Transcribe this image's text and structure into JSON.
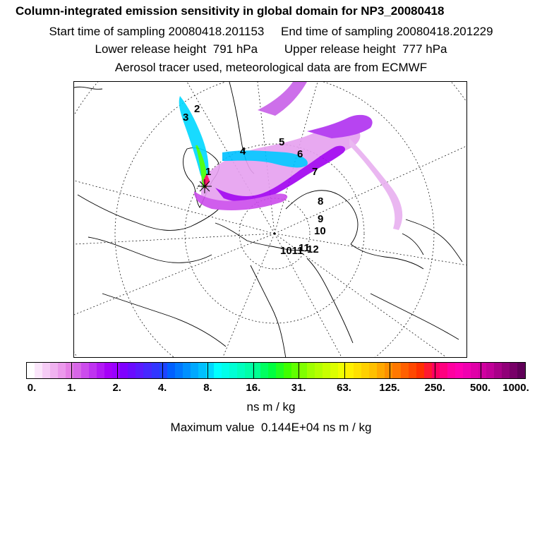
{
  "header": {
    "title": "Column-integrated emission sensitivity in global domain for NP3_20080418",
    "sampling_line": "Start time of sampling 20080418.201153     End time of sampling 20080418.201229",
    "release_line": "Lower release height  791 hPa        Upper release height  777 hPa",
    "tracer_line": "Aerosol tracer used, meteorological data are from ECMWF"
  },
  "map": {
    "trajectory_labels": [
      "1",
      "2",
      "3",
      "4",
      "5",
      "6",
      "7",
      "8",
      "9",
      "10",
      "11",
      "12"
    ],
    "overlapping_label_text": "1011"
  },
  "colorbar": {
    "tick_labels": [
      "0.",
      "1.",
      "2.",
      "4.",
      "8.",
      "16.",
      "31.",
      "63.",
      "125.",
      "250.",
      "500.",
      "1000."
    ],
    "colors": [
      "#ffffff",
      "#fbe6fb",
      "#f6ccf6",
      "#f0b2f0",
      "#eb99eb",
      "#e57fe5",
      "#d866e8",
      "#cc4cec",
      "#bf33f0",
      "#b219f4",
      "#a600f8",
      "#9a00ff",
      "#7f00ff",
      "#6a0cff",
      "#5a1aff",
      "#4628ff",
      "#3236ff",
      "#1e44ff",
      "#0060ff",
      "#0078ff",
      "#0090ff",
      "#00a8ff",
      "#00c0ff",
      "#00d8ff",
      "#00ffff",
      "#00ffea",
      "#00ffd4",
      "#00ffbe",
      "#00ffa8",
      "#00ff92",
      "#00ff60",
      "#00ff40",
      "#20ff20",
      "#40ff00",
      "#60ff00",
      "#80ff00",
      "#a0ff00",
      "#b4ff00",
      "#c8ff00",
      "#dcff00",
      "#f0ff00",
      "#fff000",
      "#ffe000",
      "#ffd000",
      "#ffc000",
      "#ffa800",
      "#ff9000",
      "#ff7800",
      "#ff6000",
      "#ff4800",
      "#ff3000",
      "#ff1830",
      "#ff0060",
      "#ff0080",
      "#ff00a0",
      "#ff00b0",
      "#f000b0",
      "#e000a8",
      "#d000a0",
      "#c00098",
      "#a80088",
      "#900078",
      "#780068",
      "#600058"
    ],
    "units": "ns m / kg",
    "max_value_text": "Maximum value  0.144E+04 ns m / kg"
  }
}
